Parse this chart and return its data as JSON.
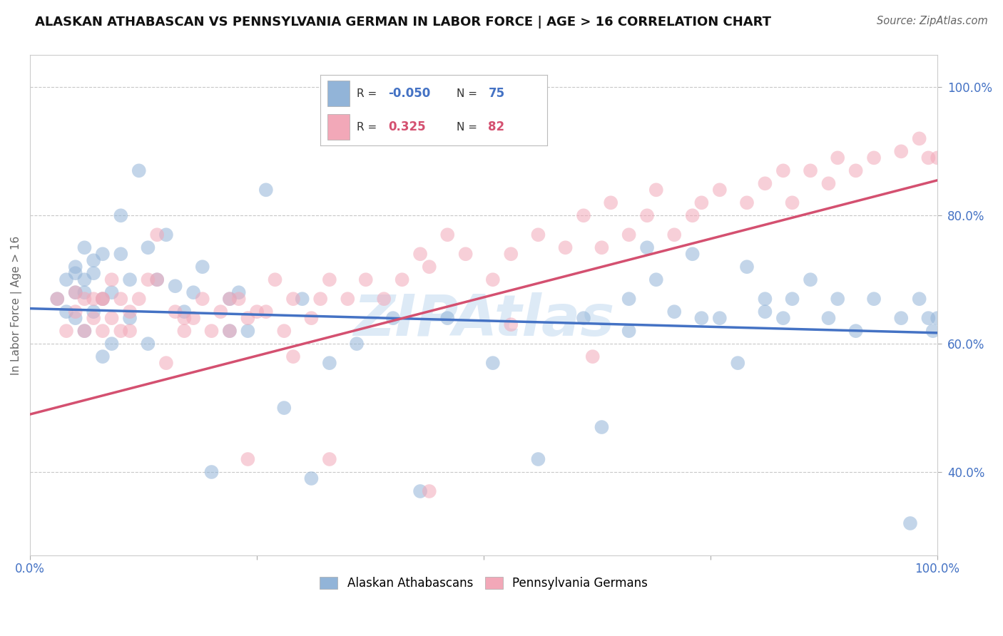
{
  "title": "ALASKAN ATHABASCAN VS PENNSYLVANIA GERMAN IN LABOR FORCE | AGE > 16 CORRELATION CHART",
  "source_text": "Source: ZipAtlas.com",
  "ylabel": "In Labor Force | Age > 16",
  "watermark": "ZIPAtlas",
  "blue_label": "Alaskan Athabascans",
  "pink_label": "Pennsylvania Germans",
  "blue_R": -0.05,
  "blue_N": 75,
  "pink_R": 0.325,
  "pink_N": 82,
  "xlim": [
    0.0,
    1.0
  ],
  "ylim": [
    0.27,
    1.05
  ],
  "x_ticks": [
    0.0,
    0.25,
    0.5,
    0.75,
    1.0
  ],
  "y_ticks": [
    0.4,
    0.6,
    0.8,
    1.0
  ],
  "y_tick_labels": [
    "40.0%",
    "60.0%",
    "80.0%",
    "100.0%"
  ],
  "grid_linestyle": "--",
  "grid_color": "#c8c8c8",
  "blue_color": "#92b4d8",
  "pink_color": "#f2a8b8",
  "blue_line_color": "#4472c4",
  "pink_line_color": "#d45070",
  "background_color": "#ffffff",
  "blue_x": [
    0.03,
    0.04,
    0.04,
    0.05,
    0.05,
    0.05,
    0.05,
    0.06,
    0.06,
    0.06,
    0.06,
    0.07,
    0.07,
    0.07,
    0.08,
    0.08,
    0.08,
    0.09,
    0.09,
    0.1,
    0.1,
    0.11,
    0.11,
    0.12,
    0.13,
    0.13,
    0.14,
    0.15,
    0.16,
    0.17,
    0.18,
    0.19,
    0.2,
    0.22,
    0.22,
    0.23,
    0.24,
    0.26,
    0.28,
    0.3,
    0.31,
    0.33,
    0.36,
    0.4,
    0.43,
    0.46,
    0.51,
    0.56,
    0.61,
    0.63,
    0.66,
    0.66,
    0.68,
    0.69,
    0.71,
    0.73,
    0.74,
    0.76,
    0.78,
    0.79,
    0.81,
    0.81,
    0.83,
    0.84,
    0.86,
    0.88,
    0.89,
    0.91,
    0.93,
    0.96,
    0.97,
    0.98,
    0.99,
    0.995,
    1.0
  ],
  "blue_y": [
    0.67,
    0.7,
    0.65,
    0.71,
    0.68,
    0.64,
    0.72,
    0.62,
    0.75,
    0.7,
    0.68,
    0.73,
    0.65,
    0.71,
    0.74,
    0.67,
    0.58,
    0.6,
    0.68,
    0.74,
    0.8,
    0.64,
    0.7,
    0.87,
    0.6,
    0.75,
    0.7,
    0.77,
    0.69,
    0.65,
    0.68,
    0.72,
    0.4,
    0.67,
    0.62,
    0.68,
    0.62,
    0.84,
    0.5,
    0.67,
    0.39,
    0.57,
    0.6,
    0.64,
    0.37,
    0.64,
    0.57,
    0.42,
    0.64,
    0.47,
    0.67,
    0.62,
    0.75,
    0.7,
    0.65,
    0.74,
    0.64,
    0.64,
    0.57,
    0.72,
    0.67,
    0.65,
    0.64,
    0.67,
    0.7,
    0.64,
    0.67,
    0.62,
    0.67,
    0.64,
    0.32,
    0.67,
    0.64,
    0.62,
    0.64
  ],
  "pink_x": [
    0.03,
    0.04,
    0.05,
    0.05,
    0.06,
    0.06,
    0.07,
    0.07,
    0.08,
    0.08,
    0.08,
    0.09,
    0.09,
    0.1,
    0.1,
    0.11,
    0.11,
    0.12,
    0.13,
    0.14,
    0.15,
    0.16,
    0.17,
    0.18,
    0.19,
    0.2,
    0.21,
    0.22,
    0.23,
    0.24,
    0.25,
    0.26,
    0.28,
    0.29,
    0.31,
    0.32,
    0.33,
    0.35,
    0.37,
    0.39,
    0.41,
    0.43,
    0.44,
    0.46,
    0.48,
    0.51,
    0.53,
    0.56,
    0.59,
    0.61,
    0.63,
    0.64,
    0.66,
    0.68,
    0.69,
    0.71,
    0.73,
    0.74,
    0.76,
    0.79,
    0.81,
    0.83,
    0.84,
    0.86,
    0.88,
    0.89,
    0.91,
    0.93,
    0.96,
    0.98,
    0.99,
    1.0,
    0.14,
    0.17,
    0.22,
    0.24,
    0.27,
    0.29,
    0.33,
    0.44,
    0.53,
    0.62
  ],
  "pink_y": [
    0.67,
    0.62,
    0.68,
    0.65,
    0.62,
    0.67,
    0.67,
    0.64,
    0.62,
    0.67,
    0.67,
    0.7,
    0.64,
    0.67,
    0.62,
    0.65,
    0.62,
    0.67,
    0.7,
    0.7,
    0.57,
    0.65,
    0.62,
    0.64,
    0.67,
    0.62,
    0.65,
    0.62,
    0.67,
    0.64,
    0.65,
    0.65,
    0.62,
    0.67,
    0.64,
    0.67,
    0.7,
    0.67,
    0.7,
    0.67,
    0.7,
    0.74,
    0.72,
    0.77,
    0.74,
    0.7,
    0.74,
    0.77,
    0.75,
    0.8,
    0.75,
    0.82,
    0.77,
    0.8,
    0.84,
    0.77,
    0.8,
    0.82,
    0.84,
    0.82,
    0.85,
    0.87,
    0.82,
    0.87,
    0.85,
    0.89,
    0.87,
    0.89,
    0.9,
    0.92,
    0.89,
    0.89,
    0.77,
    0.64,
    0.67,
    0.42,
    0.7,
    0.58,
    0.42,
    0.37,
    0.63,
    0.58
  ]
}
